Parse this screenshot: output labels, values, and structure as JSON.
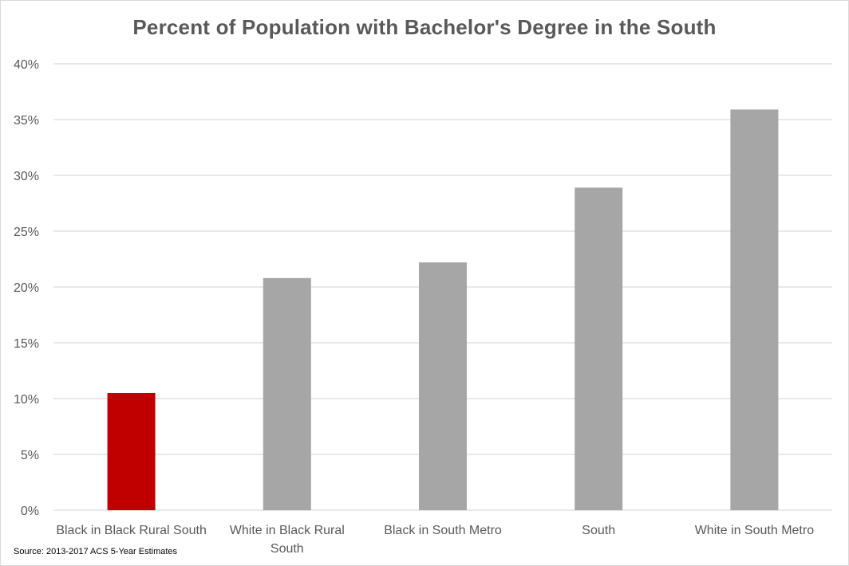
{
  "chart_data": {
    "type": "bar",
    "title": "Percent of Population with Bachelor's Degree in the South",
    "xlabel": "",
    "ylabel": "",
    "categories": [
      "Black in Black Rural South",
      "White in Black Rural South",
      "Black in South Metro",
      "South",
      "White in South Metro"
    ],
    "category_lines": [
      [
        "Black in Black Rural South"
      ],
      [
        "White in Black Rural",
        "South"
      ],
      [
        "Black in South Metro"
      ],
      [
        "South"
      ],
      [
        "White in South Metro"
      ]
    ],
    "values": [
      10.5,
      20.8,
      22.2,
      28.9,
      35.9
    ],
    "bar_colors": [
      "#c00000",
      "#a6a6a6",
      "#a6a6a6",
      "#a6a6a6",
      "#a6a6a6"
    ],
    "ylim": [
      0,
      40
    ],
    "yticks": [
      0,
      5,
      10,
      15,
      20,
      25,
      30,
      35,
      40
    ],
    "ytick_labels": [
      "0%",
      "5%",
      "10%",
      "15%",
      "20%",
      "25%",
      "30%",
      "35%",
      "40%"
    ],
    "grid": true,
    "legend": "none"
  },
  "source_note": "Source: 2013-2017 ACS 5-Year Estimates"
}
